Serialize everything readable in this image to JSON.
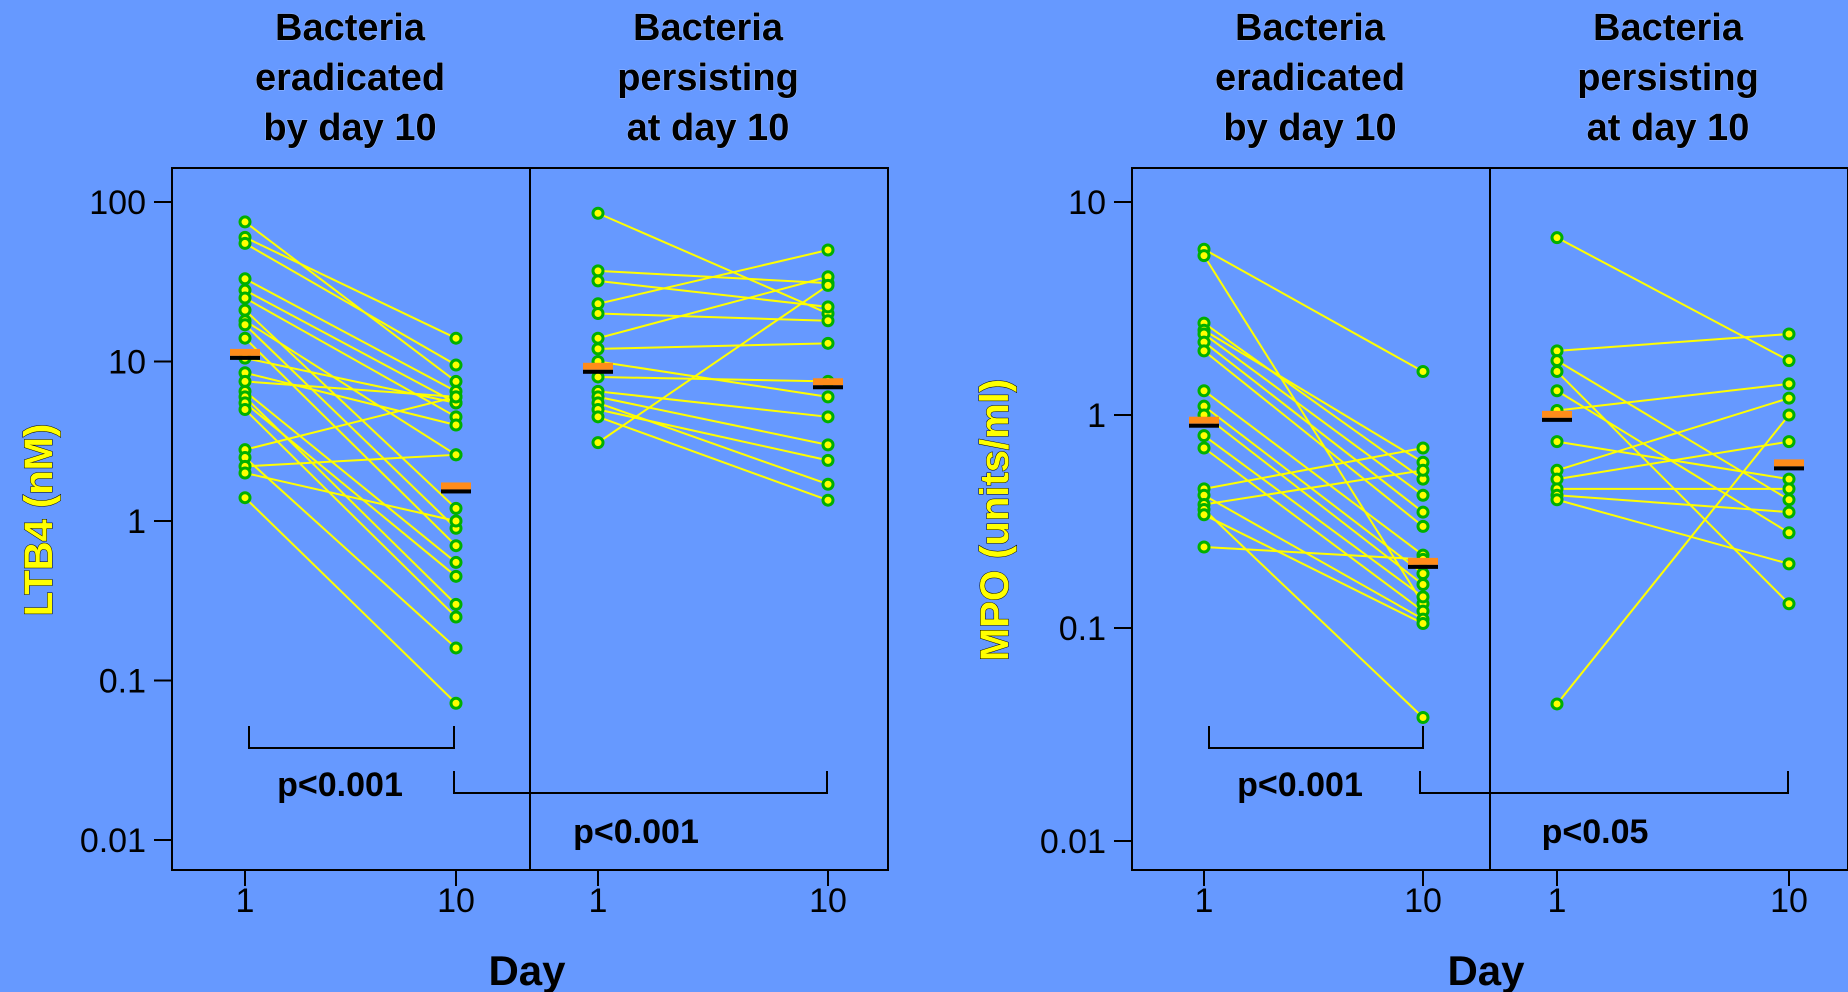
{
  "chart_data": [
    {
      "type": "scatter",
      "ylabel": "LTB4 (nM)",
      "xlabel": "Day",
      "yscale": "log",
      "ylim": [
        0.01,
        100
      ],
      "yticks": [
        "100",
        "10",
        "1",
        "0.1",
        "0.01"
      ],
      "yticks_values": [
        100,
        10,
        1,
        0.1,
        0.01
      ],
      "panels": [
        {
          "title": [
            "Bacteria",
            "eradicated",
            "by day 10"
          ],
          "xticks": [
            "1",
            "10"
          ],
          "median": [
            11,
            1.6
          ],
          "pairs": [
            [
              75,
              7.5
            ],
            [
              60,
              14
            ],
            [
              55,
              9.5
            ],
            [
              33,
              6.5
            ],
            [
              28,
              5.5
            ],
            [
              25,
              4.5
            ],
            [
              21,
              1.2
            ],
            [
              18,
              2.6
            ],
            [
              17,
              0.9
            ],
            [
              14,
              0.7
            ],
            [
              10.5,
              5.5
            ],
            [
              8.5,
              4.0
            ],
            [
              7.5,
              6.0
            ],
            [
              6.5,
              0.55
            ],
            [
              6.0,
              0.3
            ],
            [
              5.5,
              0.45
            ],
            [
              5.0,
              0.25
            ],
            [
              2.8,
              6.0
            ],
            [
              2.5,
              0.16
            ],
            [
              2.2,
              2.6
            ],
            [
              2.0,
              1.0
            ],
            [
              1.4,
              0.072
            ]
          ]
        },
        {
          "title": [
            "Bacteria",
            "persisting",
            "at day 10"
          ],
          "xticks": [
            "1",
            "10"
          ],
          "median": [
            9,
            7.2
          ],
          "pairs": [
            [
              85,
              20
            ],
            [
              37,
              31
            ],
            [
              32,
              22
            ],
            [
              23,
              50
            ],
            [
              20,
              18
            ],
            [
              14,
              34
            ],
            [
              12,
              13
            ],
            [
              10,
              6.0
            ],
            [
              8,
              7.5
            ],
            [
              6.5,
              4.5
            ],
            [
              6,
              3.0
            ],
            [
              5.5,
              1.7
            ],
            [
              5,
              2.4
            ],
            [
              4.5,
              1.35
            ],
            [
              3.1,
              30
            ]
          ]
        }
      ],
      "comparisons": [
        {
          "label": "p<0.001"
        },
        {
          "label": "p<0.001"
        }
      ]
    },
    {
      "type": "scatter",
      "ylabel": "MPO (units/ml)",
      "xlabel": "Day",
      "yscale": "log",
      "ylim": [
        0.01,
        10
      ],
      "yticks": [
        "10",
        "1",
        "0.1",
        "0.01"
      ],
      "yticks_values": [
        10,
        1,
        0.1,
        0.01
      ],
      "panels": [
        {
          "title": [
            "Bacteria",
            "eradicated",
            "by day 10"
          ],
          "xticks": [
            "1",
            "10"
          ],
          "median": [
            0.92,
            0.2
          ],
          "pairs": [
            [
              6.0,
              1.6
            ],
            [
              5.6,
              0.13
            ],
            [
              2.7,
              0.5
            ],
            [
              2.5,
              0.6
            ],
            [
              2.4,
              0.42
            ],
            [
              2.2,
              0.35
            ],
            [
              2.0,
              0.3
            ],
            [
              1.3,
              0.22
            ],
            [
              1.1,
              0.18
            ],
            [
              1.0,
              0.16
            ],
            [
              0.8,
              0.14
            ],
            [
              0.7,
              0.12
            ],
            [
              0.45,
              0.7
            ],
            [
              0.42,
              0.11
            ],
            [
              0.38,
              0.55
            ],
            [
              0.36,
              0.038
            ],
            [
              0.34,
              0.105
            ],
            [
              0.24,
              0.21
            ]
          ]
        },
        {
          "title": [
            "Bacteria",
            "persisting",
            "at day 10"
          ],
          "xticks": [
            "1",
            "10"
          ],
          "median": [
            0.98,
            0.58
          ],
          "pairs": [
            [
              6.8,
              1.8
            ],
            [
              2.0,
              2.4
            ],
            [
              1.8,
              0.4
            ],
            [
              1.6,
              0.13
            ],
            [
              1.3,
              0.28
            ],
            [
              1.05,
              1.4
            ],
            [
              0.75,
              0.5
            ],
            [
              0.55,
              1.2
            ],
            [
              0.5,
              0.75
            ],
            [
              0.45,
              0.45
            ],
            [
              0.42,
              0.35
            ],
            [
              0.4,
              0.2
            ],
            [
              0.044,
              1.0
            ]
          ]
        }
      ],
      "comparisons": [
        {
          "label": "p<0.001"
        },
        {
          "label": "p<0.05"
        }
      ]
    }
  ]
}
